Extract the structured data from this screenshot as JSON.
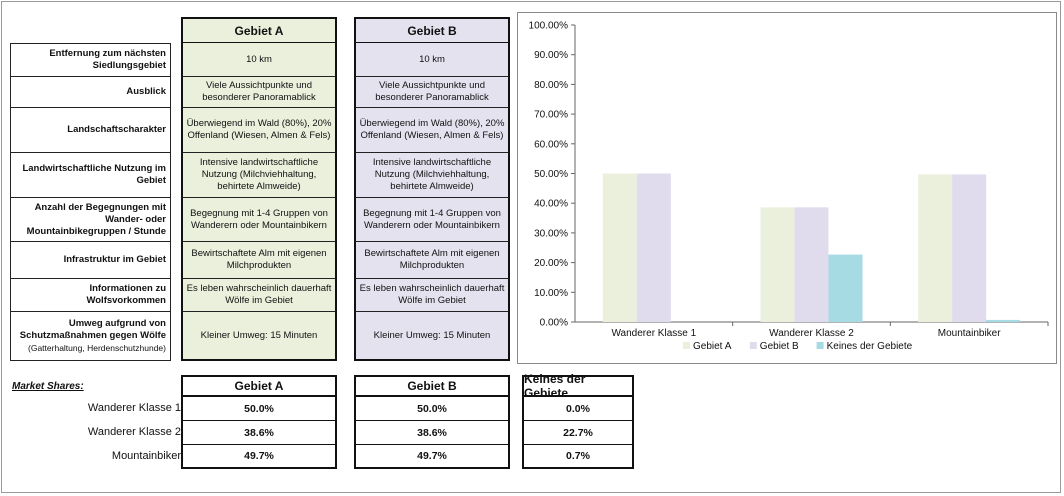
{
  "table": {
    "header_a": "Gebiet A",
    "header_b": "Gebiet B",
    "rows": [
      {
        "label": "Entfernung zum nächsten Siedlungsgebiet",
        "label_sub": "",
        "a": "10 km",
        "b": "10 km"
      },
      {
        "label": "Ausblick",
        "label_sub": "",
        "a": "Viele Aussichtpunkte und besonderer Panoramablick",
        "b": "Viele Aussichtpunkte und besonderer Panoramablick"
      },
      {
        "label": "Landschaftscharakter",
        "label_sub": "",
        "a": "Überwiegend im Wald (80%), 20% Offenland (Wiesen, Almen & Fels)",
        "b": "Überwiegend im Wald (80%), 20% Offenland (Wiesen, Almen & Fels)"
      },
      {
        "label": "Landwirtschaftliche Nutzung im Gebiet",
        "label_sub": "",
        "a": "Intensive landwirtschaftliche Nutzung (Milchviehhaltung, behirtete Almweide)",
        "b": "Intensive landwirtschaftliche Nutzung (Milchviehhaltung, behirtete Almweide)"
      },
      {
        "label": "Anzahl der Begegnungen mit Wander- oder Mountainbikegruppen / Stunde",
        "label_sub": "",
        "a": "Begegnung mit 1-4 Gruppen von Wanderern oder Mountainbikern",
        "b": "Begegnung mit 1-4 Gruppen von Wanderern oder Mountainbikern"
      },
      {
        "label": "Infrastruktur im Gebiet",
        "label_sub": "",
        "a": "Bewirtschaftete Alm mit eigenen Milchprodukten",
        "b": "Bewirtschaftete Alm mit eigenen Milchprodukten"
      },
      {
        "label": "Informationen zu Wolfsvorkommen",
        "label_sub": "",
        "a": "Es leben wahrscheinlich dauerhaft Wölfe im Gebiet",
        "b": "Es leben wahrscheinlich dauerhaft Wölfe im Gebiet"
      },
      {
        "label": "Umweg aufgrund von Schutzmaßnahmen gegen Wölfe",
        "label_sub": "(Gatterhaltung, Herdenschutzhunde)",
        "a": "Kleiner Umweg: 15 Minuten",
        "b": "Kleiner Umweg: 15 Minuten"
      }
    ]
  },
  "market_shares": {
    "title": "Market Shares:",
    "headers": [
      "Gebiet A",
      "Gebiet B",
      "Keines der Gebiete"
    ],
    "rows": [
      {
        "label": "Wanderer Klasse 1",
        "values": [
          "50.0%",
          "50.0%",
          "0.0%"
        ]
      },
      {
        "label": "Wanderer Klasse 2",
        "values": [
          "38.6%",
          "38.6%",
          "22.7%"
        ]
      },
      {
        "label": "Mountainbiker",
        "values": [
          "49.7%",
          "49.7%",
          "0.7%"
        ]
      }
    ]
  },
  "chart_data": {
    "type": "bar",
    "categories": [
      "Wanderer Klasse 1",
      "Wanderer Klasse 2",
      "Mountainbiker"
    ],
    "series": [
      {
        "name": "Gebiet A",
        "values": [
          0.5,
          0.386,
          0.497
        ],
        "color": "#eaf0dc"
      },
      {
        "name": "Gebiet B",
        "values": [
          0.5,
          0.386,
          0.497
        ],
        "color": "#e0dcee"
      },
      {
        "name": "Keines der Gebiete",
        "values": [
          0.0,
          0.227,
          0.007
        ],
        "color": "#a6dbe4"
      }
    ],
    "ylim": [
      0,
      1
    ],
    "yticks": [
      "0.00%",
      "10.00%",
      "20.00%",
      "30.00%",
      "40.00%",
      "50.00%",
      "60.00%",
      "70.00%",
      "80.00%",
      "90.00%",
      "100.00%"
    ],
    "grid": false,
    "legend": "bottom",
    "title": "",
    "xlabel": "",
    "ylabel": ""
  }
}
